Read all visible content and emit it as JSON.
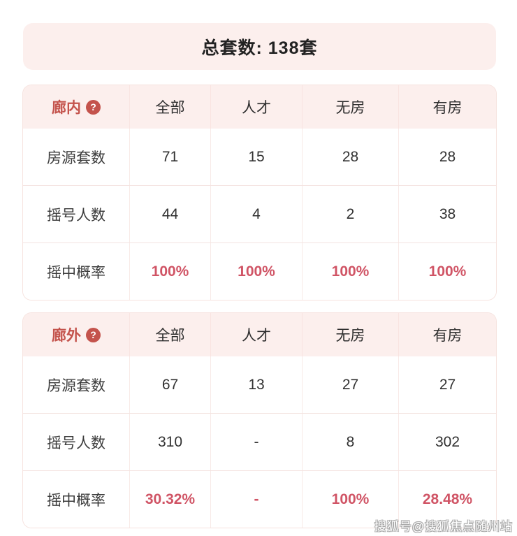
{
  "banner": {
    "title": "总套数: 138套"
  },
  "help_icon_glyph": "?",
  "watermark": {
    "text": "搜狐号@搜狐焦点随州站"
  },
  "colors": {
    "accent_red": "#c4534c",
    "value_red": "#d05465",
    "header_bg": "#fcefed",
    "banner_bg": "#fcefed",
    "text_dark": "#313131"
  },
  "chart_data": [
    {
      "type": "table",
      "title": "廊内",
      "columns": [
        "全部",
        "人才",
        "无房",
        "有房"
      ],
      "rows": [
        {
          "label": "房源套数",
          "values": [
            "71",
            "15",
            "28",
            "28"
          ],
          "red": false
        },
        {
          "label": "摇号人数",
          "values": [
            "44",
            "4",
            "2",
            "38"
          ],
          "red": false
        },
        {
          "label": "摇中概率",
          "values": [
            "100%",
            "100%",
            "100%",
            "100%"
          ],
          "red": true
        }
      ]
    },
    {
      "type": "table",
      "title": "廊外",
      "columns": [
        "全部",
        "人才",
        "无房",
        "有房"
      ],
      "rows": [
        {
          "label": "房源套数",
          "values": [
            "67",
            "13",
            "27",
            "27"
          ],
          "red": false
        },
        {
          "label": "摇号人数",
          "values": [
            "310",
            "-",
            "8",
            "302"
          ],
          "red": false
        },
        {
          "label": "摇中概率",
          "values": [
            "30.32%",
            "-",
            "100%",
            "28.48%"
          ],
          "red": true
        }
      ]
    }
  ]
}
